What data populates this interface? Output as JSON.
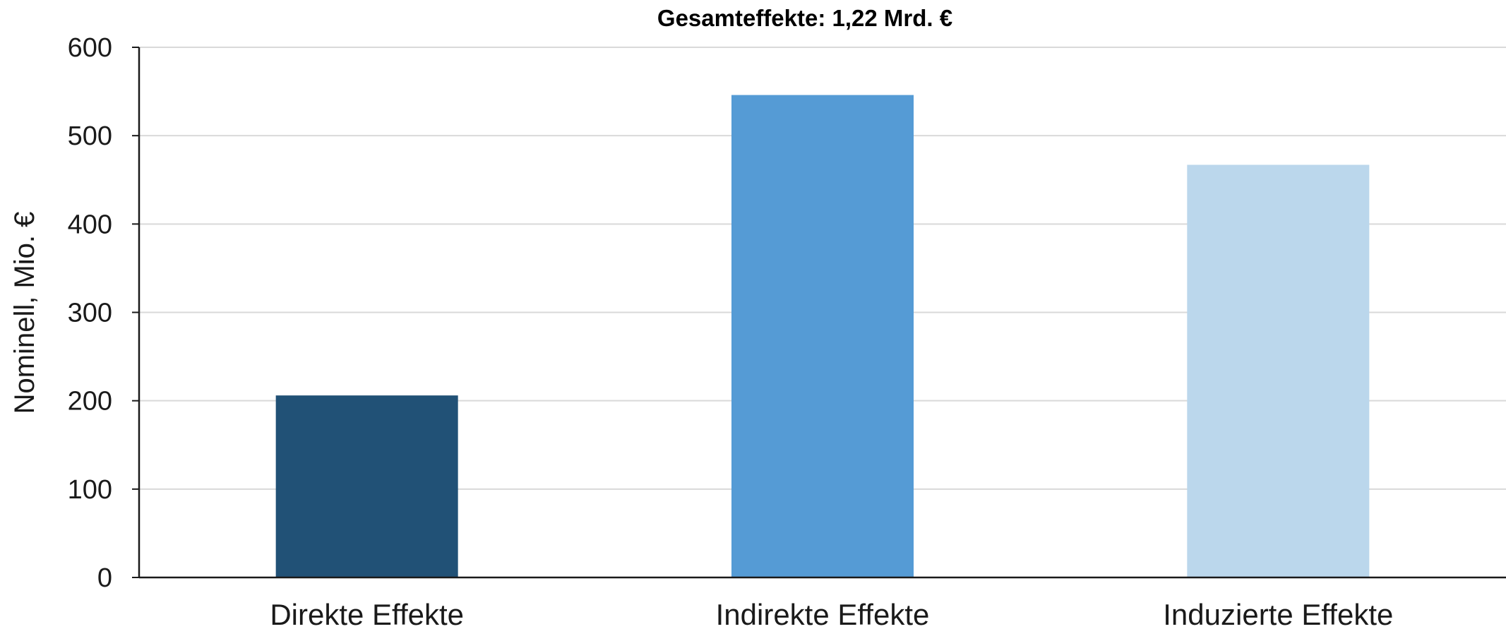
{
  "chart_data": {
    "type": "bar",
    "title": "Gesamteffekte: 1,22 Mrd. €",
    "xlabel": "",
    "ylabel": "Nominell, Mio. €",
    "categories": [
      "Direkte Effekte",
      "Indirekte Effekte",
      "Induzierte Effekte"
    ],
    "values": [
      206,
      546,
      467
    ],
    "colors": [
      "#215176",
      "#559bd5",
      "#bbd7ec"
    ],
    "ylim": [
      0,
      600
    ],
    "yticks": [
      0,
      100,
      200,
      300,
      400,
      500,
      600
    ],
    "grid": true,
    "legend": "none"
  }
}
